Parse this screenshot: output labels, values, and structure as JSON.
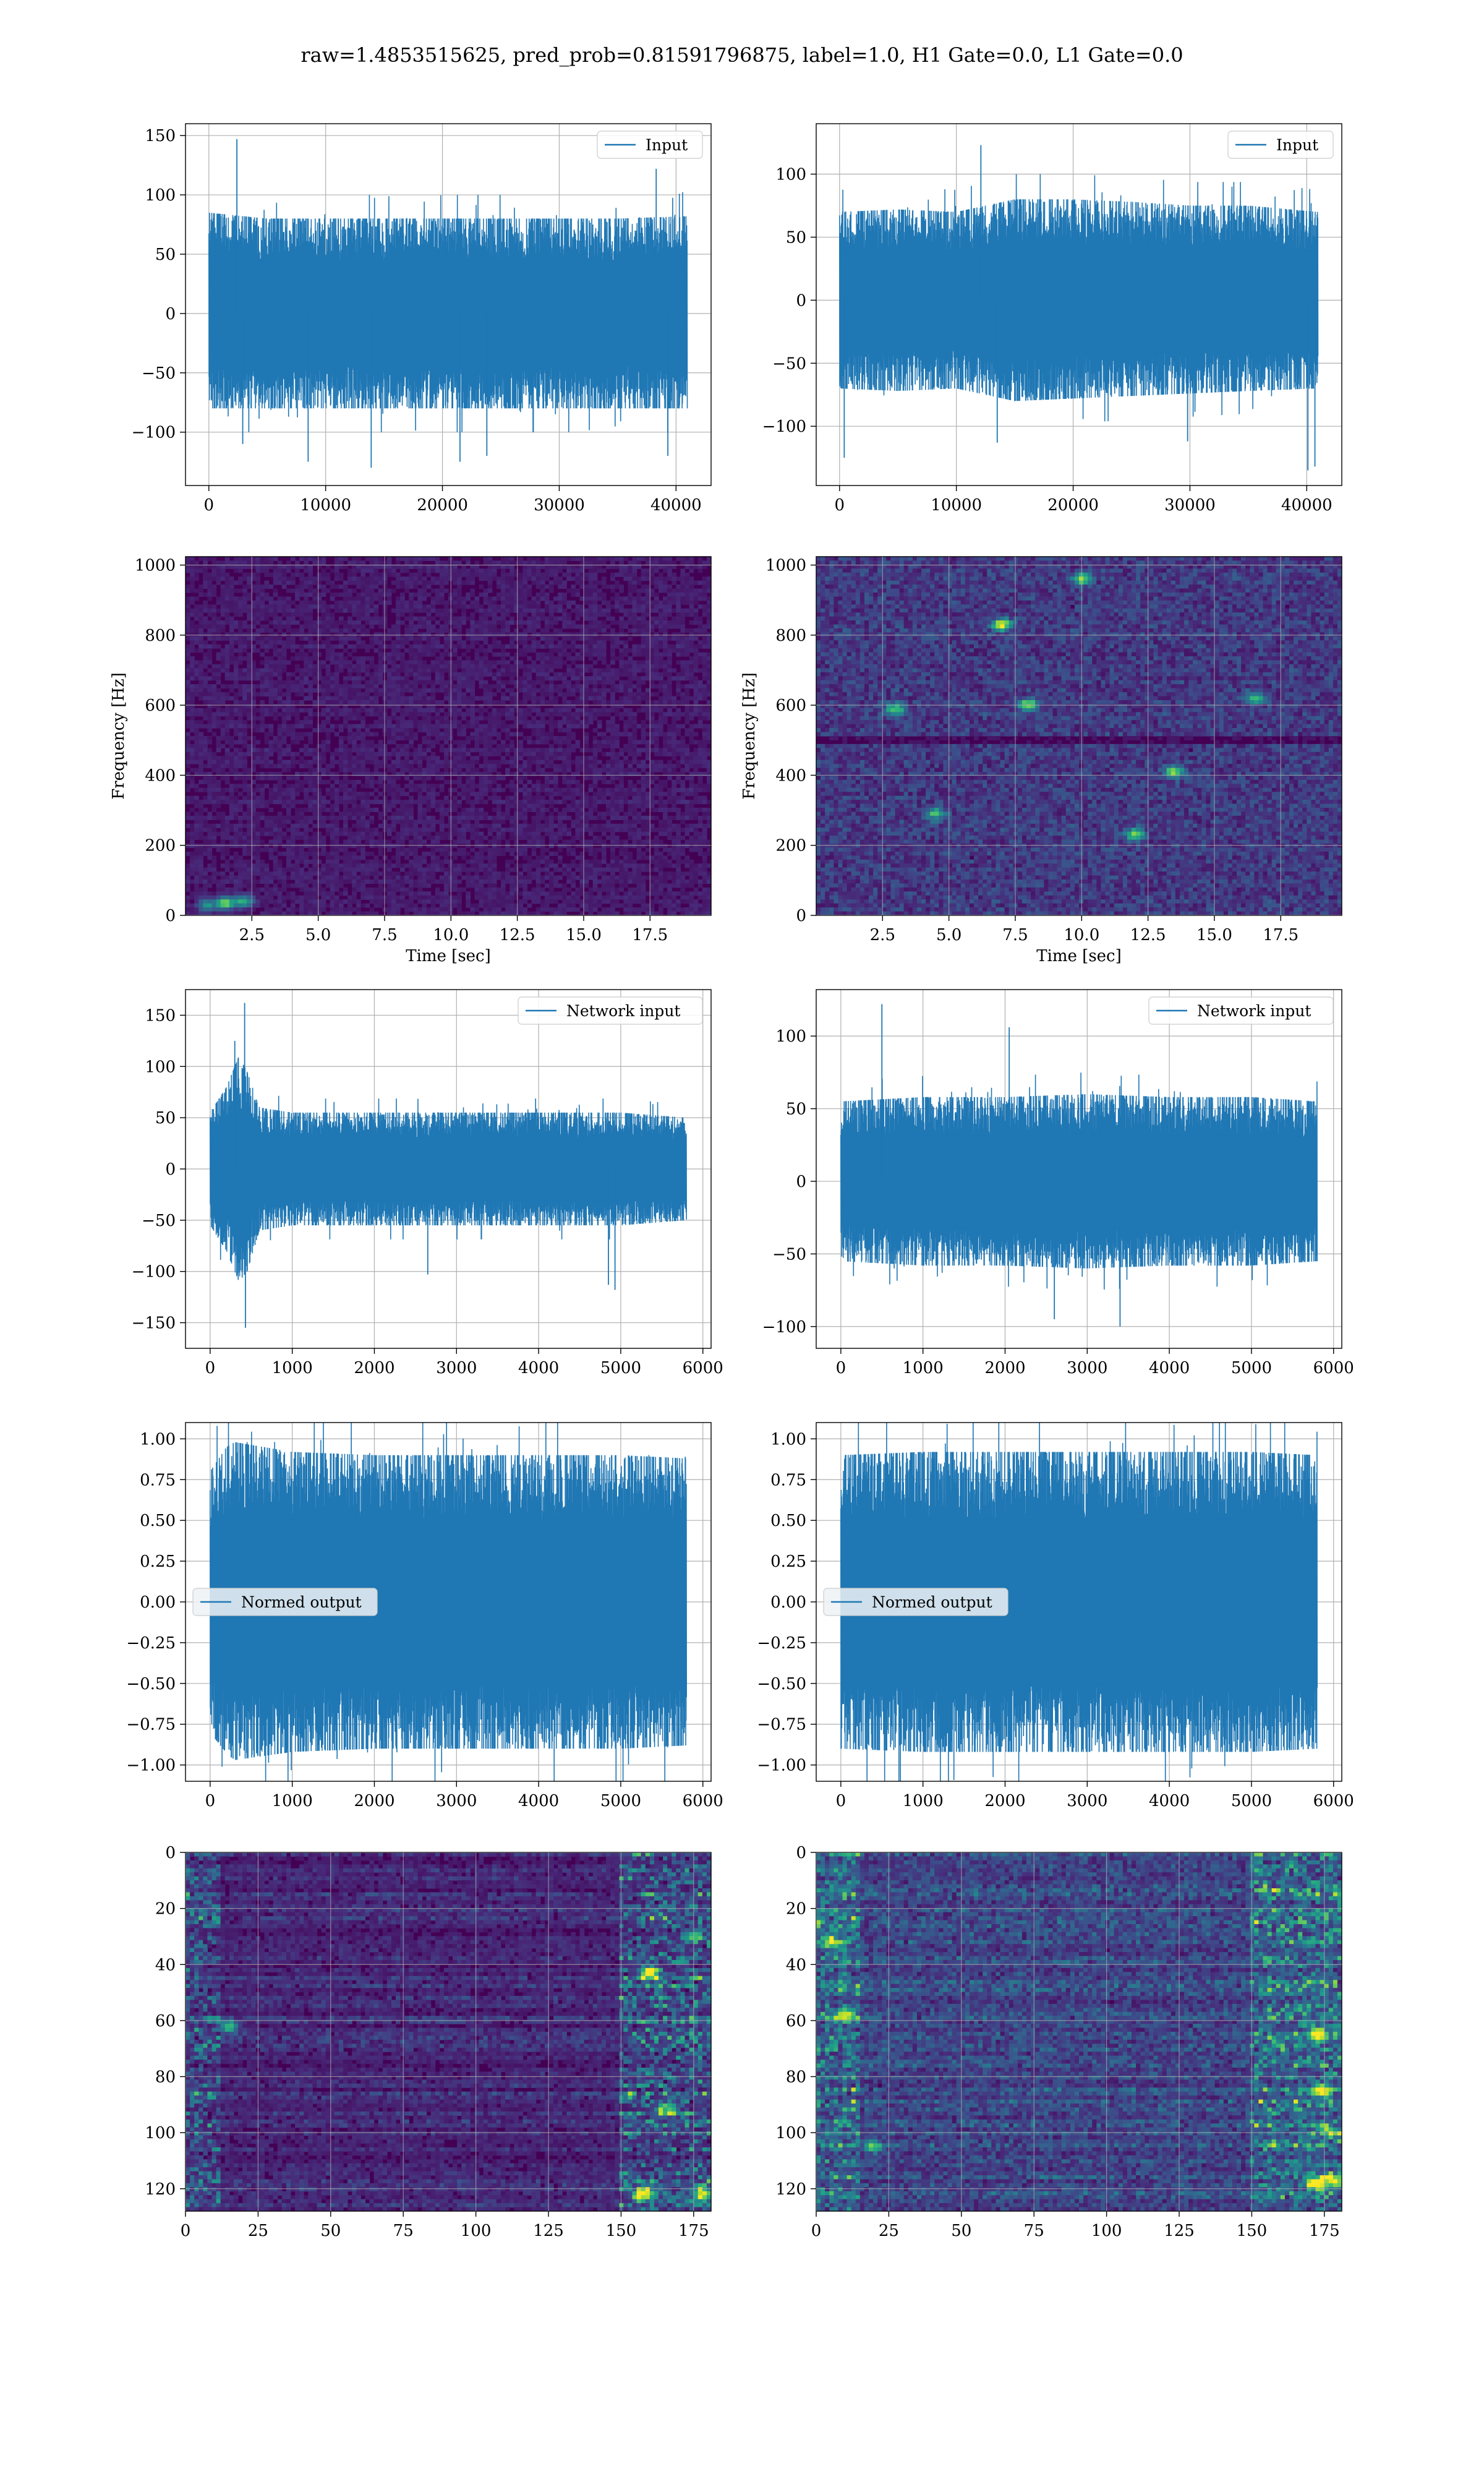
{
  "suptitle": "raw=1.4853515625, pred_prob=0.81591796875, label=1.0, H1 Gate=0.0, L1 Gate=0.0",
  "colors": {
    "line": "#1f77b4",
    "grid": "#b0b0b0",
    "viridis": [
      "#440154",
      "#482878",
      "#3e4989",
      "#31688e",
      "#26828e",
      "#1f9e89",
      "#35b779",
      "#6ece58",
      "#b5de2b",
      "#fde725"
    ]
  },
  "chart_data": [
    {
      "id": "h1-input",
      "type": "line",
      "legend": "Input",
      "legend_loc": "upper right",
      "xlim": [
        -2000,
        43000
      ],
      "ylim": [
        -145,
        160
      ],
      "n_points": 40960,
      "xticks": [
        0,
        10000,
        20000,
        30000,
        40000
      ],
      "yticks": [
        -100,
        -50,
        0,
        50,
        100,
        150
      ],
      "envelope": {
        "x": [
          0,
          5000,
          10000,
          15000,
          20000,
          25000,
          30000,
          35000,
          40960
        ],
        "upper": [
          85,
          80,
          80,
          80,
          80,
          80,
          80,
          80,
          82
        ],
        "lower": [
          -80,
          -80,
          -80,
          -80,
          -80,
          -80,
          -80,
          -80,
          -80
        ]
      },
      "peaks": [
        [
          2400,
          147
        ],
        [
          2900,
          -110
        ],
        [
          8500,
          -125
        ],
        [
          13900,
          -130
        ],
        [
          21500,
          -125
        ],
        [
          23800,
          -120
        ],
        [
          38300,
          122
        ],
        [
          39300,
          -120
        ]
      ],
      "grid": true
    },
    {
      "id": "l1-input",
      "type": "line",
      "legend": "Input",
      "legend_loc": "upper right",
      "xlim": [
        -2000,
        43000
      ],
      "ylim": [
        -147,
        140
      ],
      "n_points": 40960,
      "xticks": [
        0,
        10000,
        20000,
        30000,
        40000
      ],
      "yticks": [
        -100,
        -50,
        0,
        50,
        100
      ],
      "envelope": {
        "x": [
          0,
          5000,
          10000,
          15000,
          20000,
          25000,
          30000,
          35000,
          40960
        ],
        "upper": [
          70,
          72,
          70,
          80,
          80,
          78,
          75,
          75,
          70
        ],
        "lower": [
          -70,
          -72,
          -70,
          -80,
          -78,
          -76,
          -74,
          -72,
          -70
        ]
      },
      "peaks": [
        [
          12100,
          123
        ],
        [
          400,
          -125
        ],
        [
          40100,
          -135
        ],
        [
          40700,
          -132
        ],
        [
          13500,
          -113
        ],
        [
          29800,
          -112
        ]
      ],
      "grid": true
    },
    {
      "id": "h1-spectrogram",
      "type": "heatmap",
      "xlabel": "Time [sec]",
      "ylabel": "Frequency [Hz]",
      "xlim": [
        0,
        19.8
      ],
      "ylim": [
        0,
        1024
      ],
      "xticks": [
        2.5,
        5.0,
        7.5,
        10.0,
        12.5,
        15.0,
        17.5
      ],
      "yticks": [
        0,
        200,
        400,
        600,
        800,
        1000
      ],
      "intensity": "low",
      "hot_spots": [
        [
          1.5,
          35,
          0.75
        ],
        [
          2.2,
          40,
          0.55
        ],
        [
          0.8,
          30,
          0.45
        ]
      ],
      "grid": true
    },
    {
      "id": "l1-spectrogram",
      "type": "heatmap",
      "xlabel": "Time [sec]",
      "ylabel": "Frequency [Hz]",
      "xlim": [
        0,
        19.8
      ],
      "ylim": [
        0,
        1024
      ],
      "xticks": [
        2.5,
        5.0,
        7.5,
        10.0,
        12.5,
        15.0,
        17.5
      ],
      "yticks": [
        0,
        200,
        400,
        600,
        800,
        1000
      ],
      "intensity": "medium",
      "dark_band_hz": 505,
      "hot_spots": [
        [
          7.0,
          830,
          0.8
        ],
        [
          8.0,
          600,
          0.7
        ],
        [
          13.5,
          410,
          0.7
        ],
        [
          12.0,
          230,
          0.65
        ],
        [
          3.0,
          590,
          0.6
        ],
        [
          10.0,
          960,
          0.6
        ],
        [
          4.5,
          290,
          0.55
        ],
        [
          16.5,
          620,
          0.55
        ]
      ],
      "grid": true
    },
    {
      "id": "h1-network-input",
      "type": "line",
      "legend": "Network input",
      "legend_loc": "upper right",
      "xlim": [
        -300,
        6100
      ],
      "ylim": [
        -175,
        175
      ],
      "n_points": 5800,
      "xticks": [
        0,
        1000,
        2000,
        3000,
        4000,
        5000,
        6000
      ],
      "yticks": [
        -150,
        -100,
        -50,
        0,
        50,
        100,
        150
      ],
      "envelope": {
        "x": [
          0,
          200,
          350,
          450,
          600,
          1000,
          2000,
          3000,
          4000,
          5000,
          5800
        ],
        "upper": [
          55,
          80,
          110,
          95,
          60,
          55,
          55,
          55,
          55,
          55,
          50
        ],
        "lower": [
          -55,
          -80,
          -110,
          -100,
          -60,
          -55,
          -55,
          -55,
          -55,
          -55,
          -50
        ]
      },
      "peaks": [
        [
          420,
          162
        ],
        [
          430,
          -155
        ],
        [
          300,
          125
        ],
        [
          4930,
          -118
        ],
        [
          4850,
          -113
        ],
        [
          2650,
          -103
        ]
      ],
      "grid": true
    },
    {
      "id": "l1-network-input",
      "type": "line",
      "legend": "Network input",
      "legend_loc": "upper right",
      "xlim": [
        -300,
        6100
      ],
      "ylim": [
        -115,
        132
      ],
      "n_points": 5800,
      "xticks": [
        0,
        1000,
        2000,
        3000,
        4000,
        5000,
        6000
      ],
      "yticks": [
        -100,
        -50,
        0,
        50,
        100
      ],
      "envelope": {
        "x": [
          0,
          1000,
          2000,
          3000,
          4000,
          5000,
          5800
        ],
        "upper": [
          55,
          58,
          58,
          60,
          58,
          58,
          55
        ],
        "lower": [
          -55,
          -58,
          -58,
          -60,
          -58,
          -58,
          -55
        ]
      },
      "peaks": [
        [
          500,
          122
        ],
        [
          2050,
          106
        ],
        [
          3400,
          -100
        ],
        [
          2600,
          -95
        ]
      ],
      "grid": true
    },
    {
      "id": "h1-normed-output",
      "type": "line",
      "legend": "Normed output",
      "legend_loc": "center left",
      "xlim": [
        -300,
        6100
      ],
      "ylim": [
        -1.1,
        1.1
      ],
      "n_points": 5800,
      "xticks": [
        0,
        1000,
        2000,
        3000,
        4000,
        5000,
        6000
      ],
      "yticks": [
        -1.0,
        -0.75,
        -0.5,
        -0.25,
        0.0,
        0.25,
        0.5,
        0.75,
        1.0
      ],
      "envelope": {
        "x": [
          0,
          200,
          300,
          1000,
          2000,
          3000,
          4000,
          5000,
          5800
        ],
        "upper": [
          0.8,
          0.95,
          0.98,
          0.92,
          0.9,
          0.9,
          0.9,
          0.9,
          0.88
        ],
        "lower": [
          -0.8,
          -0.93,
          -0.97,
          -0.92,
          -0.9,
          -0.9,
          -0.9,
          -0.9,
          -0.88
        ]
      },
      "peaks": [],
      "grid": true
    },
    {
      "id": "l1-normed-output",
      "type": "line",
      "legend": "Normed output",
      "legend_loc": "center left",
      "xlim": [
        -300,
        6100
      ],
      "ylim": [
        -1.1,
        1.1
      ],
      "n_points": 5800,
      "xticks": [
        0,
        1000,
        2000,
        3000,
        4000,
        5000,
        6000
      ],
      "yticks": [
        -1.0,
        -0.75,
        -0.5,
        -0.25,
        0.0,
        0.25,
        0.5,
        0.75,
        1.0
      ],
      "envelope": {
        "x": [
          0,
          1000,
          2000,
          3000,
          4000,
          5000,
          5800
        ],
        "upper": [
          0.9,
          0.92,
          0.92,
          0.92,
          0.92,
          0.92,
          0.9
        ],
        "lower": [
          -0.9,
          -0.92,
          -0.92,
          -0.92,
          -0.92,
          -0.92,
          -0.9
        ]
      },
      "peaks": [],
      "grid": true
    },
    {
      "id": "h1-features",
      "type": "heatmap",
      "xlim": [
        0,
        181
      ],
      "ylim": [
        128,
        0
      ],
      "xticks": [
        0,
        25,
        50,
        75,
        100,
        125,
        150,
        175
      ],
      "yticks": [
        0,
        20,
        40,
        60,
        80,
        100,
        120
      ],
      "intensity": "low",
      "bright_columns": [
        [
          0,
          12,
          0.45
        ],
        [
          150,
          181,
          0.55
        ]
      ],
      "hot_spots": [
        [
          160,
          43,
          0.95
        ],
        [
          158,
          122,
          1.0
        ],
        [
          178,
          122,
          0.8
        ],
        [
          15,
          62,
          0.6
        ],
        [
          175,
          30,
          0.6
        ],
        [
          165,
          92,
          0.55
        ]
      ],
      "grid": true
    },
    {
      "id": "l1-features",
      "type": "heatmap",
      "xlim": [
        0,
        181
      ],
      "ylim": [
        128,
        0
      ],
      "xticks": [
        0,
        25,
        50,
        75,
        100,
        125,
        150,
        175
      ],
      "yticks": [
        0,
        20,
        40,
        60,
        80,
        100,
        120
      ],
      "intensity": "medium",
      "bright_columns": [
        [
          0,
          15,
          0.5
        ],
        [
          150,
          181,
          0.55
        ]
      ],
      "hot_spots": [
        [
          173,
          65,
          0.95
        ],
        [
          174,
          85,
          1.0
        ],
        [
          172,
          118,
          1.0
        ],
        [
          178,
          117,
          0.9
        ],
        [
          10,
          58,
          0.7
        ],
        [
          5,
          32,
          0.6
        ],
        [
          177,
          100,
          0.6
        ],
        [
          20,
          105,
          0.55
        ]
      ],
      "grid": true
    }
  ]
}
